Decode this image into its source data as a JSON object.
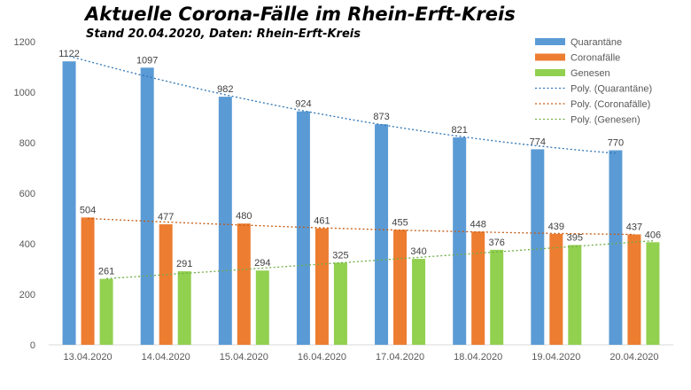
{
  "chart_data": {
    "type": "bar",
    "title": "Aktuelle Corona-Fälle im Rhein-Erft-Kreis",
    "subtitle": "Stand 20.04.2020, Daten: Rhein-Erft-Kreis",
    "categories": [
      "13.04.2020",
      "14.04.2020",
      "15.04.2020",
      "16.04.2020",
      "17.04.2020",
      "18.04.2020",
      "19.04.2020",
      "20.04.2020"
    ],
    "series": [
      {
        "name": "Quarantäne",
        "color": "#5b9bd5",
        "values": [
          1122,
          1097,
          982,
          924,
          873,
          821,
          774,
          770
        ]
      },
      {
        "name": "Coronafälle",
        "color": "#ed7d31",
        "values": [
          504,
          477,
          480,
          461,
          455,
          448,
          439,
          437
        ]
      },
      {
        "name": "Genesen",
        "color": "#92d050",
        "values": [
          261,
          291,
          294,
          325,
          340,
          376,
          395,
          406
        ]
      }
    ],
    "trendlines": [
      {
        "name": "Poly. (Quarantäne)",
        "series": "Quarantäne",
        "color": "#2e75b6"
      },
      {
        "name": "Poly. (Coronafälle)",
        "series": "Coronafälle",
        "color": "#c55a11"
      },
      {
        "name": "Poly. (Genesen)",
        "series": "Genesen",
        "color": "#70ad47"
      }
    ],
    "ylim": [
      0,
      1200
    ],
    "yticks": [
      0,
      200,
      400,
      600,
      800,
      1000,
      1200
    ],
    "grid": false,
    "legend": "top-right",
    "data_labels": true
  }
}
